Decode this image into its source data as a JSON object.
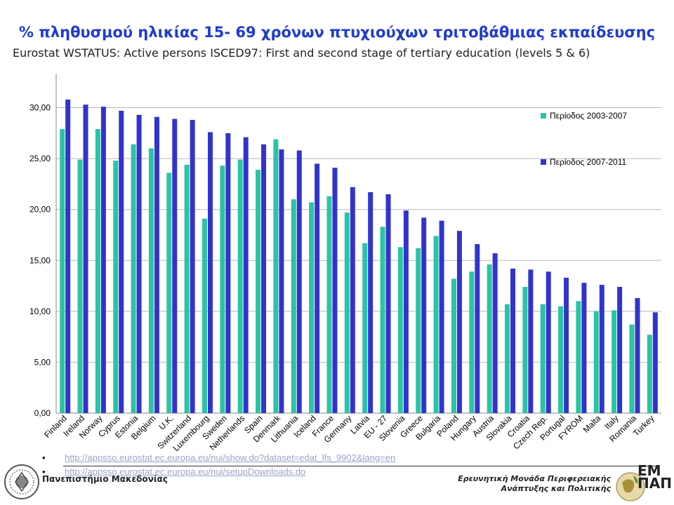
{
  "header": {
    "title": "% πληθυσμού ηλικίας 15- 69 χρόνων πτυχιούχων τριτοβάθμιας εκπαίδευσης",
    "subtitle": "Eurostat  WSTATUS: Active persons ISCED97: First and second stage of tertiary education (levels 5 & 6)",
    "overlay": "Eurostat"
  },
  "chart_data": {
    "type": "bar",
    "categories": [
      "Finland",
      "Ireland",
      "Norway",
      "Cyprus",
      "Estonia",
      "Belgium",
      "U.K.",
      "Switzerland",
      "Luxembourg",
      "Sweden",
      "Netherlands",
      "Spain",
      "Denmark",
      "Lithuania",
      "Iceland",
      "France",
      "Germany",
      "Latvia",
      "EU - 27",
      "Slovenia",
      "Greece",
      "Bulgaria",
      "Poland",
      "Hungary",
      "Austria",
      "Slovakia",
      "Croatia",
      "Czech Rep.",
      "Portugal",
      "FYROM",
      "Malta",
      "Italy",
      "Romania",
      "Turkey"
    ],
    "series": [
      {
        "name": "Περίοδος 2003-2007",
        "color": "#2ac4a4",
        "values": [
          27.9,
          24.9,
          27.9,
          24.8,
          26.4,
          26.0,
          23.6,
          24.4,
          19.1,
          24.3,
          24.9,
          23.9,
          26.9,
          21.0,
          20.7,
          21.3,
          19.7,
          16.7,
          18.3,
          16.3,
          16.2,
          17.4,
          13.2,
          13.9,
          14.6,
          10.7,
          12.4,
          10.7,
          10.5,
          11.0,
          10.0,
          10.1,
          8.7,
          7.7
        ]
      },
      {
        "name": "Περίοδος 2007-2011",
        "color": "#3333cc",
        "values": [
          30.8,
          30.3,
          30.1,
          29.7,
          29.3,
          29.1,
          28.9,
          28.8,
          27.6,
          27.5,
          27.1,
          26.4,
          25.9,
          25.8,
          24.5,
          24.1,
          22.2,
          21.7,
          21.5,
          19.9,
          19.2,
          18.9,
          17.9,
          16.6,
          15.7,
          14.2,
          14.1,
          13.9,
          13.3,
          12.8,
          12.6,
          12.4,
          11.3,
          9.9
        ]
      }
    ],
    "ylim": [
      0,
      33
    ],
    "yticks": [
      0,
      5,
      10,
      15,
      20,
      25,
      30
    ],
    "ytick_labels": [
      "0,00",
      "5,00",
      "10,00",
      "15,00",
      "20,00",
      "25,00",
      "30,00"
    ],
    "grid": true,
    "legend_position": "top-right"
  },
  "links": [
    "http://appsso.eurostat.ec.europa.eu/nui/show.do?dataset=edat_lfs_9902&lang=en",
    "http://appsso.eurostat.ec.europa.eu/nui/setupDownloads.do"
  ],
  "footer": {
    "university": "Πανεπιστήμιο Μακεδονίας",
    "unit_line1": "Ερευνητική Μονάδα Περιφερειακής",
    "unit_line2": "Ανάπτυξης και Πολιτικής",
    "logo_line1": "ΕΜ",
    "logo_line2": "ΠΑΠ"
  }
}
